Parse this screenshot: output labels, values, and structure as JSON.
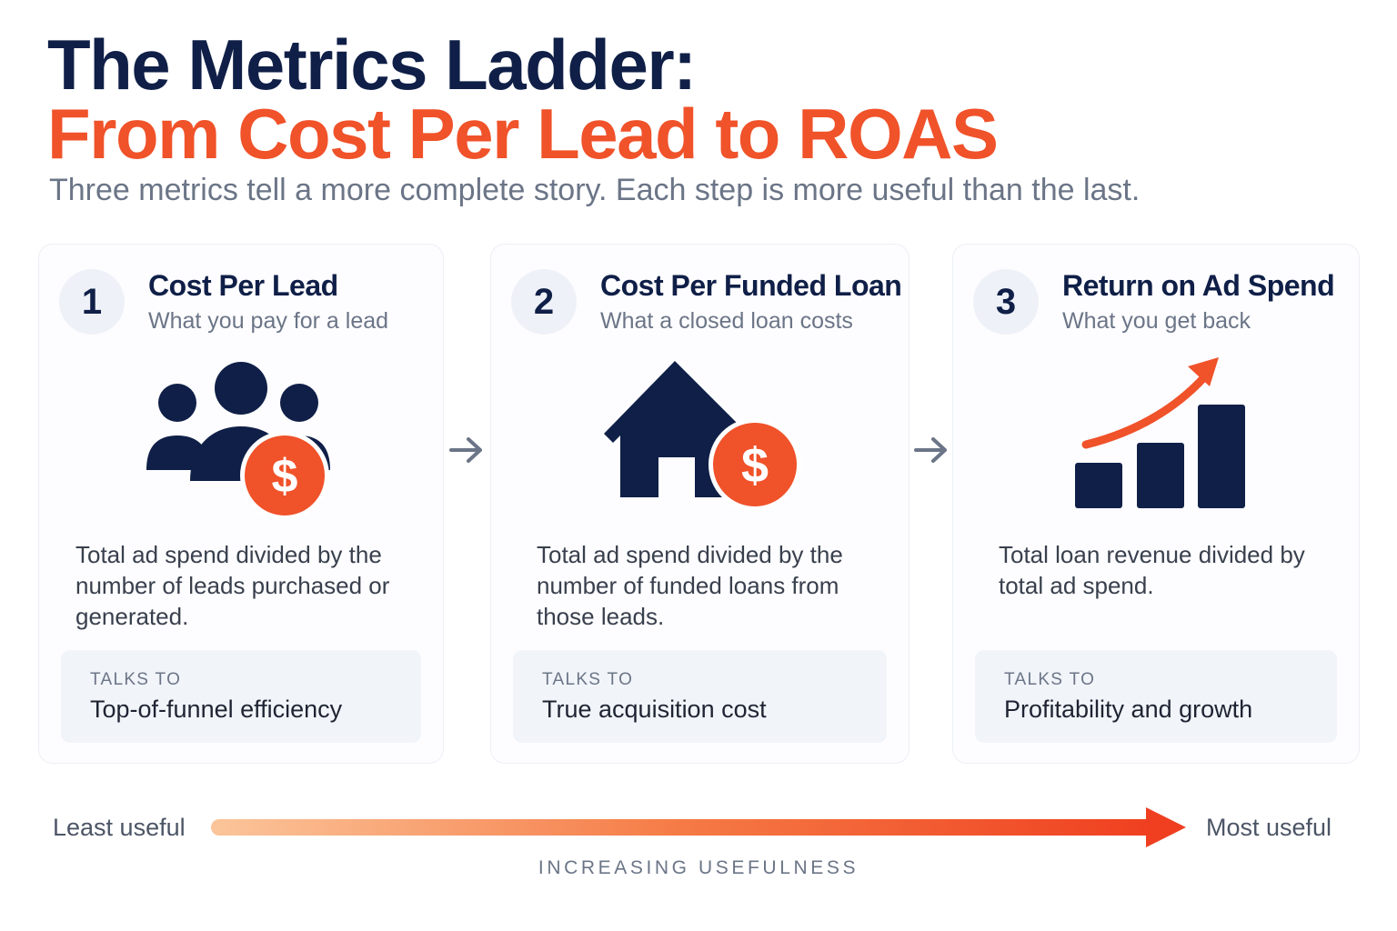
{
  "header": {
    "title_line1": "The Metrics Ladder:",
    "title_line2": "From Cost Per Lead to ROAS",
    "subtitle": "Three metrics tell a more complete story. Each step is more useful than the last."
  },
  "cards": [
    {
      "number": "1",
      "title": "Cost Per Lead",
      "subtitle": "What you pay for a lead",
      "icon": "people-dollar-icon",
      "description": "Total ad spend divided by the number of leads purchased or generated.",
      "talks_to_label": "TALKS TO",
      "talks_to_value": "Top-of-funnel efficiency"
    },
    {
      "number": "2",
      "title": "Cost Per Funded Loan",
      "subtitle": "What a closed loan costs",
      "icon": "house-dollar-icon",
      "description": "Total ad spend divided by the number of funded loans from those leads.",
      "talks_to_label": "TALKS TO",
      "talks_to_value": "True acquisition cost"
    },
    {
      "number": "3",
      "title": "Return on Ad Spend",
      "subtitle": "What you get back",
      "icon": "growth-chart-icon",
      "description": "Total loan revenue divided by total ad spend.",
      "talks_to_label": "TALKS TO",
      "talks_to_value": "Profitability and growth"
    }
  ],
  "scale": {
    "left_label": "Least useful",
    "right_label": "Most useful",
    "caption": "INCREASING USEFULNESS"
  },
  "colors": {
    "navy": "#0f1f47",
    "accent": "#f0522a",
    "muted": "#6b7587"
  }
}
